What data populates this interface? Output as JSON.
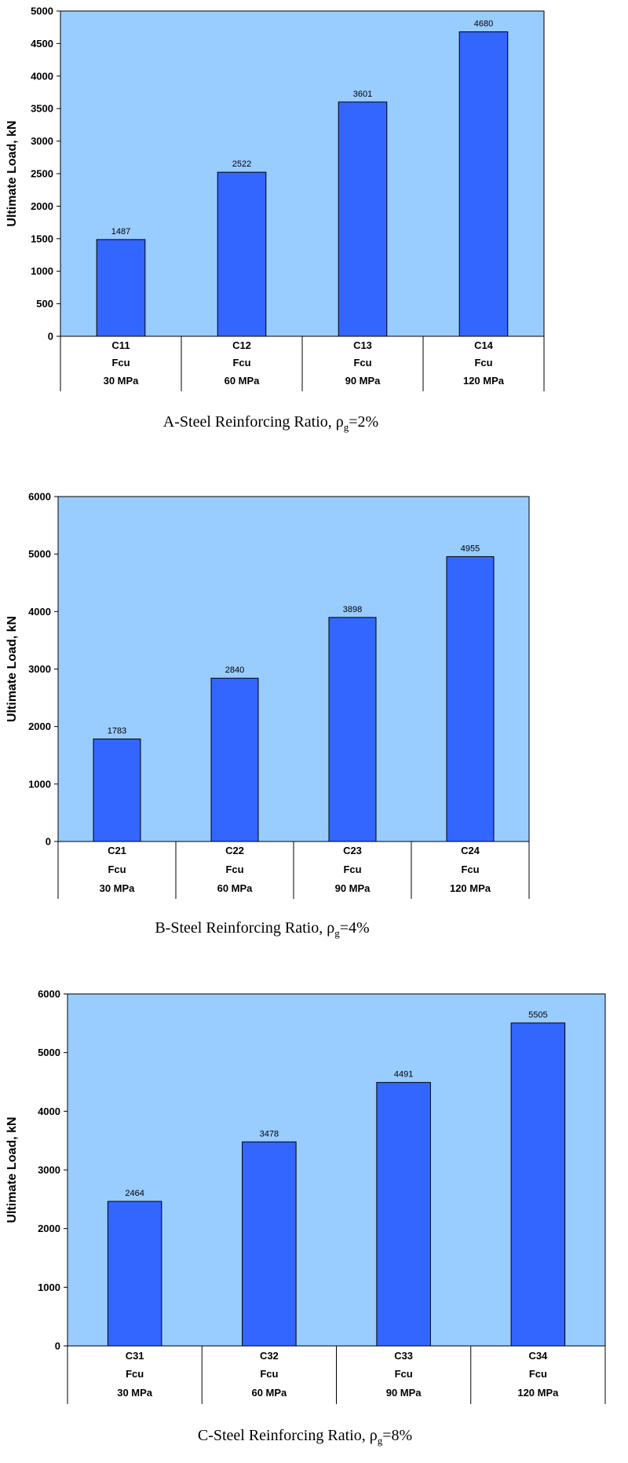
{
  "chart_data": [
    {
      "type": "bar",
      "categories": [
        [
          "C11",
          "Fcu",
          "30 MPa"
        ],
        [
          "C12",
          "Fcu",
          "60 MPa"
        ],
        [
          "C13",
          "Fcu",
          "90 MPa"
        ],
        [
          "C14",
          "Fcu",
          "120 MPa"
        ]
      ],
      "values": [
        1487,
        2522,
        3601,
        4680
      ],
      "ylabel": "Ultimate Load, kN",
      "ylim": [
        0,
        5000
      ],
      "yticks": [
        0,
        500,
        1000,
        1500,
        2000,
        2500,
        3000,
        3500,
        4000,
        4500,
        5000
      ],
      "caption": {
        "prefix": "A-Steel Reinforcing Ratio, ",
        "symbol": "ρ",
        "sub": "g",
        "suffix": "=2%"
      },
      "grid": false,
      "colors": {
        "plot_bg": "#99ccff",
        "bar": "#3366ff",
        "bar_edge": "#000000"
      }
    },
    {
      "type": "bar",
      "categories": [
        [
          "C21",
          "Fcu",
          "30 MPa"
        ],
        [
          "C22",
          "Fcu",
          "60 MPa"
        ],
        [
          "C23",
          "Fcu",
          "90 MPa"
        ],
        [
          "C24",
          "Fcu",
          "120 MPa"
        ]
      ],
      "values": [
        1783,
        2840,
        3898,
        4955
      ],
      "ylabel": "Ultimate Load, kN",
      "ylim": [
        0,
        6000
      ],
      "yticks": [
        0,
        1000,
        2000,
        3000,
        4000,
        5000,
        6000
      ],
      "caption": {
        "prefix": "B-Steel Reinforcing Ratio, ",
        "symbol": "ρ",
        "sub": "g",
        "suffix": "=4%"
      },
      "grid": false,
      "colors": {
        "plot_bg": "#99ccff",
        "bar": "#3366ff",
        "bar_edge": "#000000"
      }
    },
    {
      "type": "bar",
      "categories": [
        [
          "C31",
          "Fcu",
          "30 MPa"
        ],
        [
          "C32",
          "Fcu",
          "60 MPa"
        ],
        [
          "C33",
          "Fcu",
          "90 MPa"
        ],
        [
          "C34",
          "Fcu",
          "120 MPa"
        ]
      ],
      "values": [
        2464,
        3478,
        4491,
        5505
      ],
      "ylabel": "Ultimate Load, kN",
      "ylim": [
        0,
        6000
      ],
      "yticks": [
        0,
        1000,
        2000,
        3000,
        4000,
        5000,
        6000
      ],
      "caption": {
        "prefix": "C-Steel Reinforcing Ratio, ",
        "symbol": "ρ",
        "sub": "g",
        "suffix": "=8%"
      },
      "grid": false,
      "colors": {
        "plot_bg": "#99ccff",
        "bar": "#3366ff",
        "bar_edge": "#000000"
      }
    }
  ]
}
